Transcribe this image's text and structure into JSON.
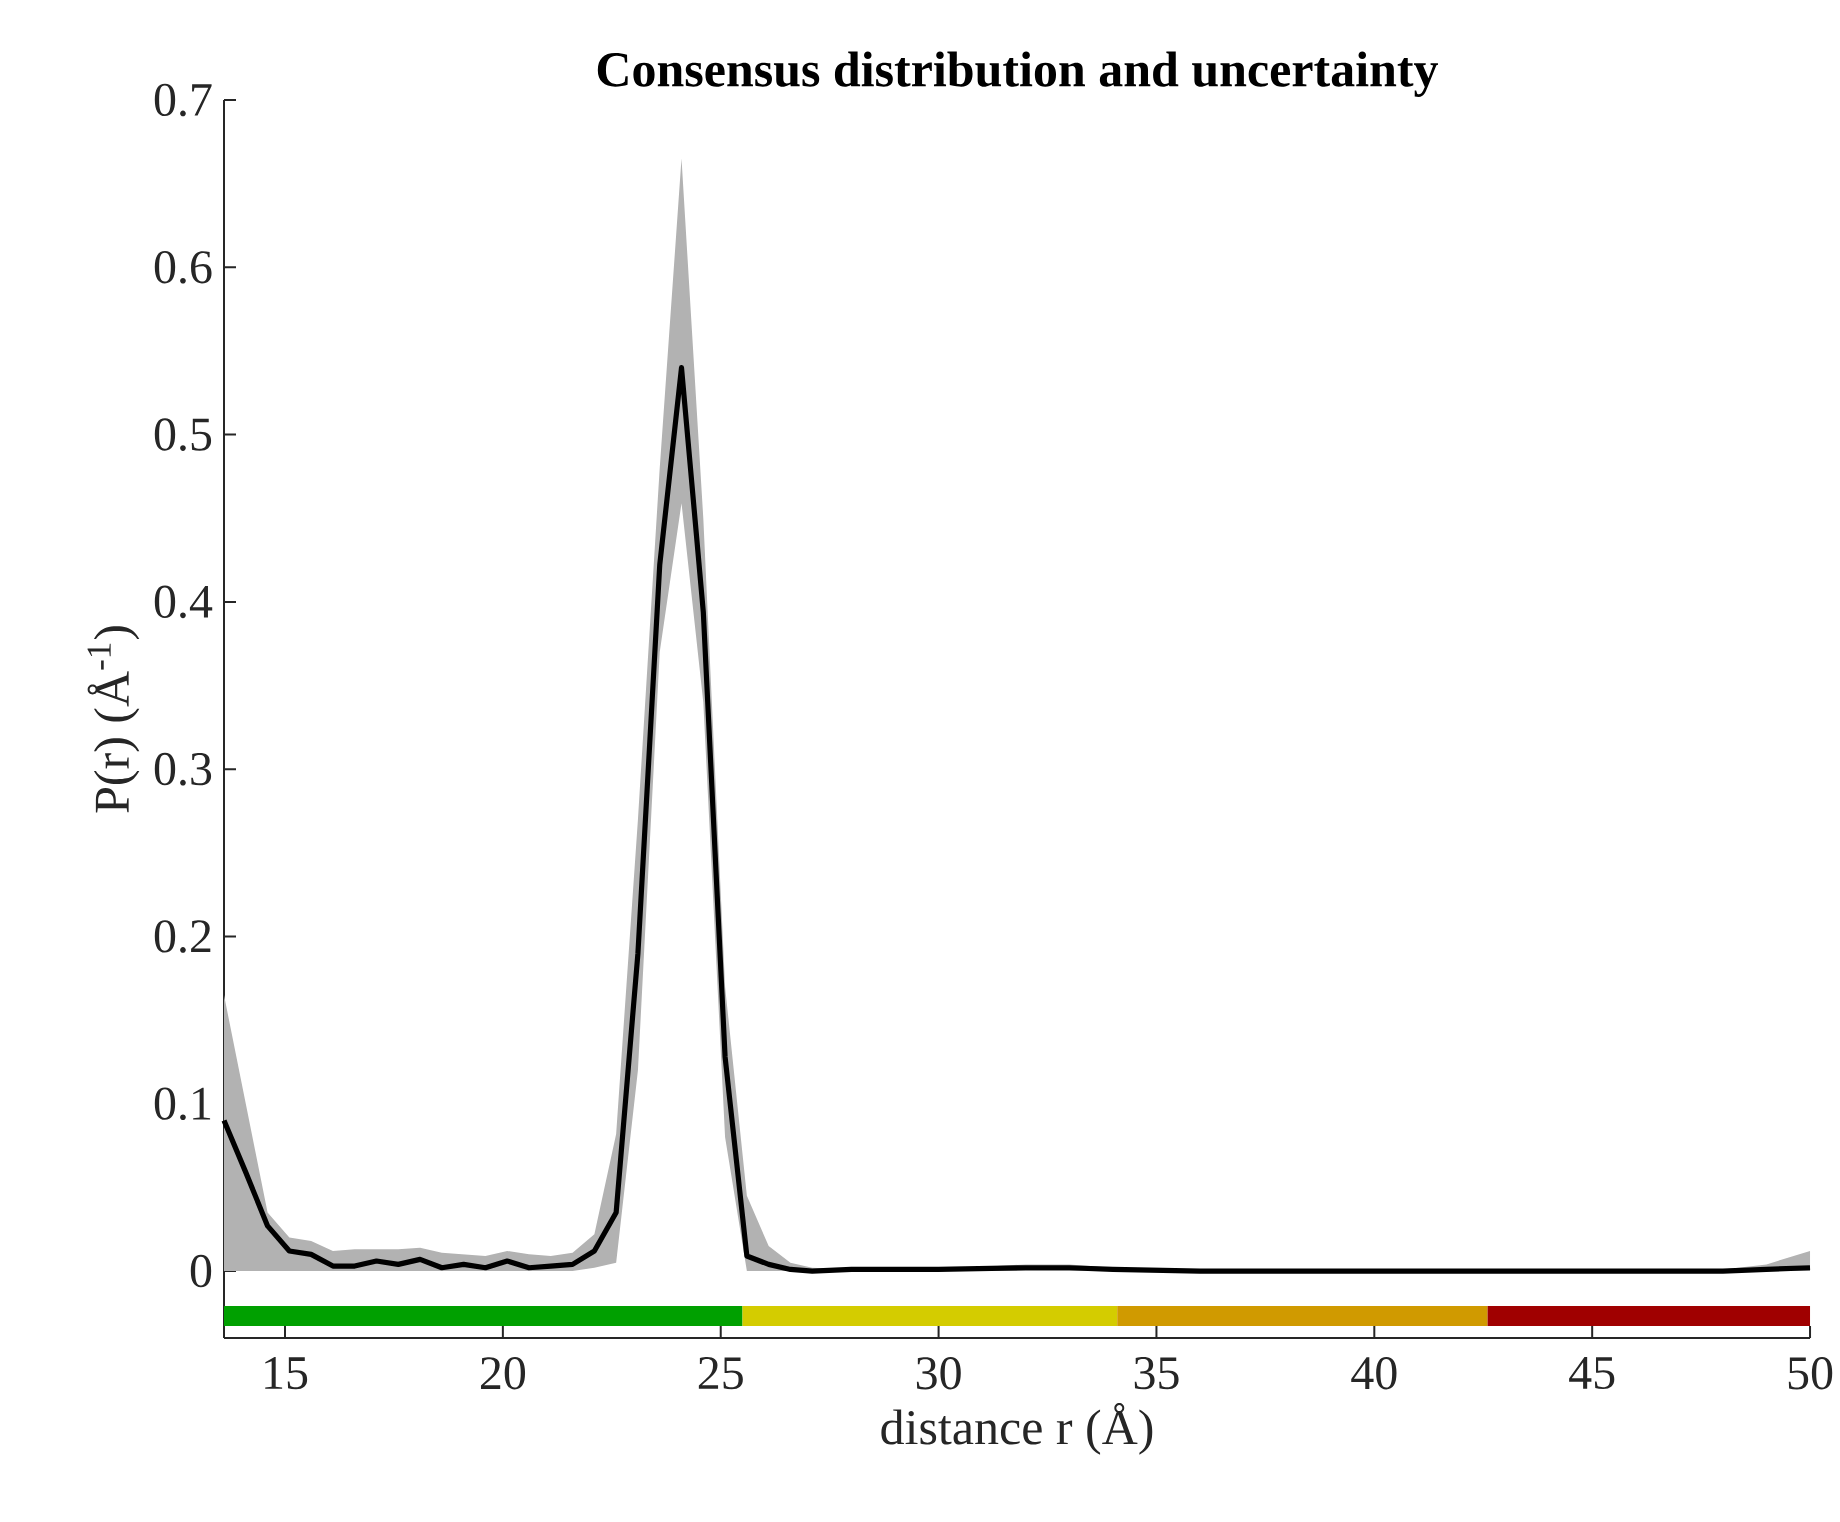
{
  "chart_data": [
    {
      "type": "line",
      "title": "Consensus distribution and uncertainty",
      "ylabel": "P(r) (Å$^{-1}$)",
      "x": [
        13.6,
        14.1,
        14.6,
        15.1,
        15.6,
        16.1,
        16.6,
        17.1,
        17.6,
        18.1,
        18.6,
        19.1,
        19.6,
        20.1,
        20.6,
        21.1,
        21.6,
        22.1,
        22.6,
        23.1,
        23.6,
        24.1,
        24.6,
        25.1,
        25.6,
        26.1,
        26.6,
        27.1,
        28,
        30,
        32,
        33,
        34,
        36,
        40,
        45,
        48,
        49,
        50
      ],
      "series": [
        {
          "color": "#000000",
          "values": [
            0.09,
            0.059,
            0.027,
            0.012,
            0.01,
            0.003,
            0.003,
            0.006,
            0.004,
            0.007,
            0.002,
            0.004,
            0.002,
            0.006,
            0.002,
            0.003,
            0.004,
            0.012,
            0.035,
            0.19,
            0.422,
            0.54,
            0.394,
            0.128,
            0.009,
            0.004,
            0.001,
            0,
            0.001,
            0.001,
            0.002,
            0.002,
            0.001,
            0,
            0,
            0,
            0,
            0.001,
            0.002
          ],
          "upper": [
            0.165,
            0.1,
            0.035,
            0.02,
            0.018,
            0.012,
            0.013,
            0.013,
            0.013,
            0.014,
            0.011,
            0.01,
            0.009,
            0.012,
            0.01,
            0.009,
            0.011,
            0.022,
            0.082,
            0.27,
            0.48,
            0.665,
            0.45,
            0.17,
            0.045,
            0.015,
            0.005,
            0.002,
            0.001,
            0.001,
            0.004,
            0.004,
            0.002,
            0.001,
            0.001,
            0.001,
            0.001,
            0.004,
            0.012
          ],
          "lower": [
            0,
            0,
            0,
            0,
            0,
            0,
            0,
            0,
            0,
            0,
            0,
            0,
            0,
            0,
            0,
            0,
            0,
            0.002,
            0.005,
            0.12,
            0.37,
            0.459,
            0.34,
            0.08,
            0,
            0,
            0,
            0,
            0,
            0,
            0,
            0,
            0,
            0,
            0,
            0,
            0,
            0,
            0
          ]
        }
      ],
      "xlim": [
        13.6,
        50
      ],
      "ylim": [
        -0.04,
        0.7
      ],
      "yticks": [
        0,
        0.1,
        0.2,
        0.3,
        0.4,
        0.5,
        0.6,
        0.7
      ],
      "tick_labels": "y",
      "grid": false,
      "marker": "none",
      "line_style": "solid"
    },
    {
      "type": "bar",
      "orientation": "horizontal",
      "xlabel": "distance r (Å)",
      "categories": [
        null
      ],
      "series": [
        {
          "color": "#00a000",
          "values": [
            11.9
          ],
          "base": [
            13.6
          ]
        },
        {
          "color": "#d4cc00",
          "values": [
            8.6
          ],
          "base": [
            25.5
          ]
        },
        {
          "color": "#d09a00",
          "values": [
            8.5
          ],
          "base": [
            34.1
          ]
        },
        {
          "color": "#a00000",
          "values": [
            7.4
          ],
          "base": [
            42.6
          ]
        }
      ],
      "xlim": [
        13.6,
        50
      ],
      "xticks": [
        15,
        20,
        25,
        30,
        35,
        40,
        45,
        50
      ],
      "tick_labels": "x"
    }
  ]
}
